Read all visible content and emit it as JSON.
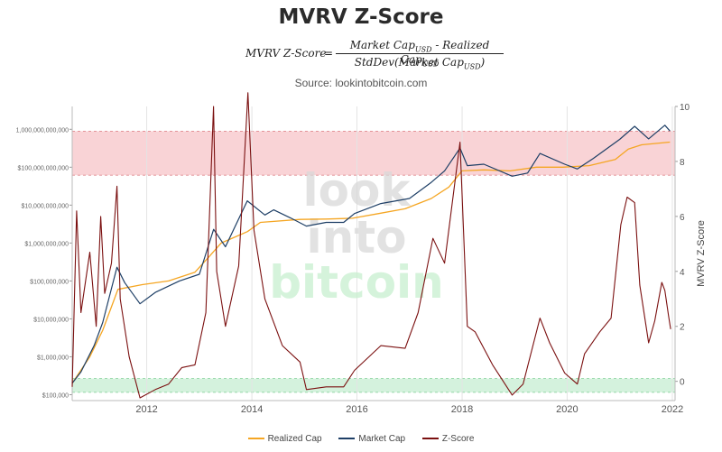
{
  "title": "MVRV Z-Score",
  "formula": {
    "lhs": "MVRV Z-Score",
    "equals": "=",
    "numerator": "Market Cap",
    "numerator_sub": "USD",
    "numerator_minus": " - Realized Cap",
    "numerator_sub2": "USD",
    "denominator": "StdDev(Market Cap",
    "denominator_sub": "USD",
    "denominator_close": ")"
  },
  "source": "Source: lookintobitcoin.com",
  "watermark": [
    "look",
    "into",
    "bitcoin"
  ],
  "colors": {
    "realized_cap": "#f5a623",
    "market_cap": "#1e3f66",
    "z_score": "#7b1010",
    "red_zone": "#f8c8cc",
    "green_zone": "#c9efd4",
    "watermark_gray": "#d9d9d9",
    "watermark_green": "#c8f0cf"
  },
  "chart_data": {
    "type": "line",
    "title": "MVRV Z-Score",
    "ylabel_right": "MVRV Z-Score",
    "x_range": [
      "2010-08-01",
      "2022-01-20"
    ],
    "x_ticks": [
      "2012",
      "2014",
      "2016",
      "2018",
      "2020",
      "2022"
    ],
    "y_left": {
      "scale": "log",
      "range": [
        70000,
        4000000000000
      ],
      "ticks": [
        100000,
        1000000,
        10000000,
        100000000,
        1000000000,
        10000000000,
        100000000000,
        1000000000000
      ],
      "tick_labels": [
        "$100,000",
        "$1,000,000",
        "$10,000,000",
        "$100,000,000",
        "$1,000,000,000",
        "$10,000,000,000",
        "$100,000,000,000",
        "1,000,000,000,000"
      ]
    },
    "y_right": {
      "scale": "linear",
      "range": [
        -0.7,
        10
      ],
      "ticks": [
        0,
        2,
        4,
        6,
        8,
        10
      ],
      "tick_labels": [
        "0",
        "2",
        "4",
        "6",
        "8",
        "10"
      ]
    },
    "zones": [
      {
        "name": "red",
        "axis": "right",
        "from": 7.5,
        "to": 9.1
      },
      {
        "name": "green",
        "axis": "right",
        "from": -0.4,
        "to": 0.1
      }
    ],
    "legend": [
      "Realized Cap",
      "Market Cap",
      "Z-Score"
    ],
    "legend_position": "bottom",
    "series": [
      {
        "name": "Realized Cap",
        "axis": "left",
        "points": [
          [
            "2010-08-01",
            200000
          ],
          [
            "2010-12-01",
            1000000
          ],
          [
            "2011-03-01",
            5000000
          ],
          [
            "2011-06-15",
            60000000
          ],
          [
            "2011-12-01",
            80000000
          ],
          [
            "2012-06-01",
            100000000
          ],
          [
            "2012-12-01",
            170000000
          ],
          [
            "2013-03-01",
            400000000
          ],
          [
            "2013-06-01",
            1000000000
          ],
          [
            "2013-12-01",
            2000000000
          ],
          [
            "2014-03-01",
            3500000000
          ],
          [
            "2014-12-01",
            4200000000
          ],
          [
            "2015-06-01",
            4300000000
          ],
          [
            "2015-12-01",
            4500000000
          ],
          [
            "2016-06-01",
            6000000000
          ],
          [
            "2016-12-01",
            8000000000
          ],
          [
            "2017-06-01",
            15000000000
          ],
          [
            "2017-10-01",
            30000000000
          ],
          [
            "2017-12-31",
            80000000000
          ],
          [
            "2018-06-01",
            85000000000
          ],
          [
            "2018-12-01",
            80000000000
          ],
          [
            "2019-06-01",
            100000000000
          ],
          [
            "2019-12-01",
            100000000000
          ],
          [
            "2020-06-01",
            110000000000
          ],
          [
            "2020-12-01",
            160000000000
          ],
          [
            "2021-03-01",
            300000000000
          ],
          [
            "2021-06-01",
            390000000000
          ],
          [
            "2021-12-15",
            460000000000
          ]
        ]
      },
      {
        "name": "Market Cap",
        "axis": "left",
        "points": [
          [
            "2010-08-01",
            200000
          ],
          [
            "2010-10-01",
            400000
          ],
          [
            "2011-01-01",
            2000000
          ],
          [
            "2011-03-01",
            8000000
          ],
          [
            "2011-06-08",
            230000000
          ],
          [
            "2011-08-01",
            90000000
          ],
          [
            "2011-11-15",
            25000000
          ],
          [
            "2012-03-01",
            50000000
          ],
          [
            "2012-08-15",
            100000000
          ],
          [
            "2013-01-01",
            150000000
          ],
          [
            "2013-04-10",
            2300000000
          ],
          [
            "2013-07-01",
            800000000
          ],
          [
            "2013-11-30",
            13000000000
          ],
          [
            "2014-04-01",
            5500000000
          ],
          [
            "2014-06-01",
            7500000000
          ],
          [
            "2014-10-01",
            4500000000
          ],
          [
            "2015-01-15",
            2800000000
          ],
          [
            "2015-06-01",
            3500000000
          ],
          [
            "2015-10-01",
            3500000000
          ],
          [
            "2015-12-15",
            6000000000
          ],
          [
            "2016-06-15",
            11000000000
          ],
          [
            "2016-12-31",
            15000000000
          ],
          [
            "2017-06-01",
            40000000000
          ],
          [
            "2017-09-01",
            80000000000
          ],
          [
            "2017-12-17",
            320000000000
          ],
          [
            "2018-02-06",
            110000000000
          ],
          [
            "2018-06-01",
            120000000000
          ],
          [
            "2018-12-15",
            58000000000
          ],
          [
            "2019-04-01",
            70000000000
          ],
          [
            "2019-06-26",
            230000000000
          ],
          [
            "2019-12-15",
            120000000000
          ],
          [
            "2020-03-12",
            90000000000
          ],
          [
            "2020-07-01",
            170000000000
          ],
          [
            "2020-12-31",
            540000000000
          ],
          [
            "2021-04-14",
            1200000000000
          ],
          [
            "2021-07-20",
            560000000000
          ],
          [
            "2021-11-10",
            1280000000000
          ],
          [
            "2021-12-15",
            900000000000
          ]
        ]
      },
      {
        "name": "Z-Score",
        "axis": "right",
        "points": [
          [
            "2010-08-01",
            -0.2
          ],
          [
            "2010-09-01",
            6.2
          ],
          [
            "2010-10-01",
            2.5
          ],
          [
            "2010-12-01",
            4.7
          ],
          [
            "2011-01-15",
            2.0
          ],
          [
            "2011-02-15",
            6.0
          ],
          [
            "2011-03-15",
            3.2
          ],
          [
            "2011-05-01",
            4.3
          ],
          [
            "2011-06-08",
            7.1
          ],
          [
            "2011-07-01",
            3.0
          ],
          [
            "2011-09-01",
            0.9
          ],
          [
            "2011-11-15",
            -0.6
          ],
          [
            "2012-03-01",
            -0.3
          ],
          [
            "2012-06-01",
            -0.1
          ],
          [
            "2012-09-01",
            0.5
          ],
          [
            "2012-12-01",
            0.6
          ],
          [
            "2013-02-15",
            2.5
          ],
          [
            "2013-04-09",
            10.0
          ],
          [
            "2013-05-01",
            4.0
          ],
          [
            "2013-07-01",
            2.0
          ],
          [
            "2013-10-01",
            4.2
          ],
          [
            "2013-12-04",
            10.5
          ],
          [
            "2014-01-15",
            5.5
          ],
          [
            "2014-04-01",
            3.0
          ],
          [
            "2014-08-01",
            1.3
          ],
          [
            "2014-12-01",
            0.7
          ],
          [
            "2015-01-15",
            -0.3
          ],
          [
            "2015-06-01",
            -0.2
          ],
          [
            "2015-10-01",
            -0.2
          ],
          [
            "2015-12-15",
            0.4
          ],
          [
            "2016-06-15",
            1.3
          ],
          [
            "2016-12-01",
            1.2
          ],
          [
            "2017-03-01",
            2.5
          ],
          [
            "2017-06-12",
            5.2
          ],
          [
            "2017-09-01",
            4.3
          ],
          [
            "2017-12-17",
            8.7
          ],
          [
            "2018-02-06",
            2.0
          ],
          [
            "2018-04-01",
            1.8
          ],
          [
            "2018-08-01",
            0.6
          ],
          [
            "2018-12-15",
            -0.5
          ],
          [
            "2019-03-01",
            -0.1
          ],
          [
            "2019-06-26",
            2.3
          ],
          [
            "2019-09-01",
            1.4
          ],
          [
            "2019-12-15",
            0.3
          ],
          [
            "2020-03-12",
            -0.1
          ],
          [
            "2020-05-01",
            1.0
          ],
          [
            "2020-08-15",
            1.8
          ],
          [
            "2020-11-01",
            2.3
          ],
          [
            "2021-01-08",
            5.7
          ],
          [
            "2021-02-21",
            6.7
          ],
          [
            "2021-04-14",
            6.5
          ],
          [
            "2021-05-20",
            3.5
          ],
          [
            "2021-07-20",
            1.4
          ],
          [
            "2021-09-01",
            2.2
          ],
          [
            "2021-10-20",
            3.6
          ],
          [
            "2021-11-10",
            3.3
          ],
          [
            "2021-12-05",
            2.4
          ],
          [
            "2021-12-20",
            1.9
          ]
        ]
      }
    ]
  }
}
